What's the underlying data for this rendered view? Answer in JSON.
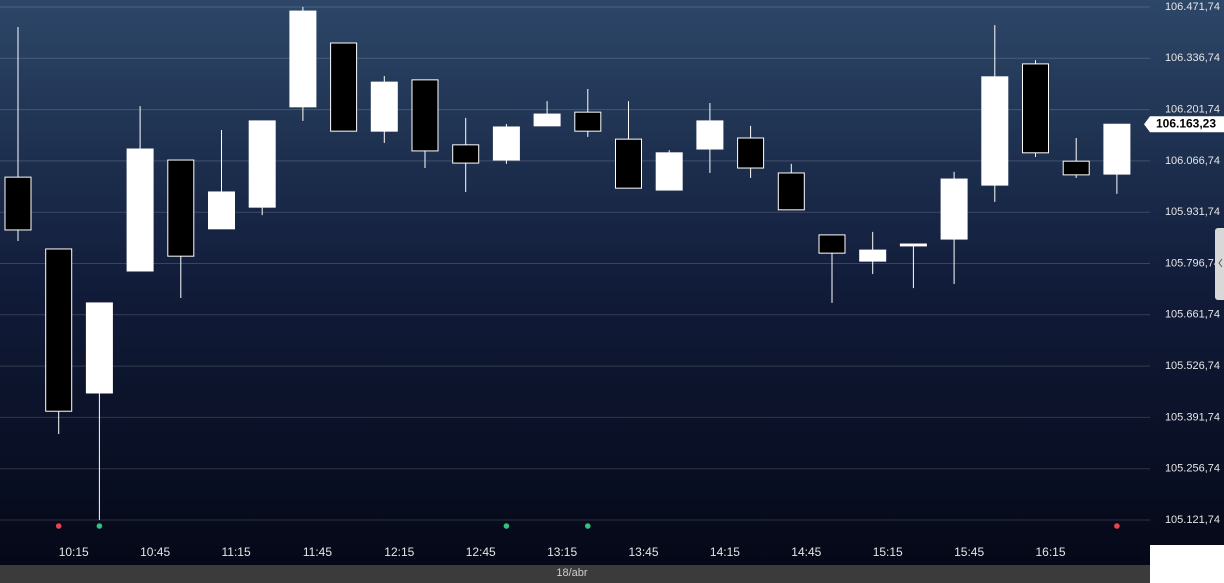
{
  "chart_data": {
    "type": "candlestick",
    "categories": [
      null,
      "10:15",
      null,
      "10:45",
      null,
      "11:15",
      null,
      "11:45",
      null,
      "12:15",
      null,
      "12:45",
      null,
      "13:15",
      null,
      "13:45",
      null,
      "14:15",
      null,
      "14:45",
      null,
      "15:15",
      null,
      "15:45",
      null,
      "16:15",
      null,
      null
    ],
    "open": [
      106024,
      105835,
      105456,
      105777,
      106069,
      105888,
      105945,
      106209,
      106377,
      106145,
      106280,
      106109,
      106069,
      106159,
      106195,
      106124,
      105990,
      106098,
      106127,
      106035,
      105872,
      105803,
      105843,
      105861,
      106003,
      106322,
      106066,
      106032
    ],
    "high": [
      106419,
      105835,
      105693,
      106211,
      106069,
      106148,
      106172,
      106472,
      106377,
      106290,
      106280,
      106180,
      106164,
      106224,
      106256,
      106224,
      106095,
      106219,
      106159,
      106059,
      105872,
      105880,
      105848,
      106038,
      106424,
      106332,
      106127,
      106164
    ],
    "low": [
      105856,
      105348,
      105122,
      105777,
      105706,
      105888,
      105924,
      106172,
      106145,
      106114,
      106048,
      105985,
      106059,
      106159,
      106130,
      105995,
      105990,
      106035,
      106022,
      105938,
      105693,
      105769,
      105732,
      105743,
      105959,
      106077,
      106022,
      105980
    ],
    "close": [
      105885,
      105408,
      105693,
      106098,
      105816,
      105985,
      106172,
      106461,
      106145,
      106274,
      106093,
      106061,
      106156,
      106190,
      106145,
      105995,
      106088,
      106172,
      106048,
      105938,
      105824,
      105832,
      105848,
      106019,
      106288,
      106088,
      106030,
      106163.23
    ],
    "up_color": "#ffffff",
    "down_color": "#000000",
    "ylim": [
      105121.74,
      106471.74
    ],
    "yticks": [
      {
        "value": 106471.74,
        "label": "106.471,74"
      },
      {
        "value": 106336.74,
        "label": "106.336,74"
      },
      {
        "value": 106201.74,
        "label": "106.201,74"
      },
      {
        "value": 106066.74,
        "label": "106.066,74"
      },
      {
        "value": 105931.74,
        "label": "105.931,74"
      },
      {
        "value": 105796.74,
        "label": "105.796,74"
      },
      {
        "value": 105661.74,
        "label": "105.661,74"
      },
      {
        "value": 105526.74,
        "label": "105.526,74"
      },
      {
        "value": 105391.74,
        "label": "105.391,74"
      },
      {
        "value": 105256.74,
        "label": "105.256,74"
      },
      {
        "value": 105121.74,
        "label": "105.121,74"
      }
    ],
    "grid": true,
    "current_price": {
      "value": 106163.23,
      "label": "106.163,23"
    },
    "signals": [
      {
        "at": 1,
        "color": "#e8444c"
      },
      {
        "at": 2,
        "color": "#33c07a"
      },
      {
        "at": 12,
        "color": "#33c07a"
      },
      {
        "at": 14,
        "color": "#33c07a"
      },
      {
        "at": 27,
        "color": "#e8444c"
      }
    ],
    "date_label": "18/abr"
  }
}
